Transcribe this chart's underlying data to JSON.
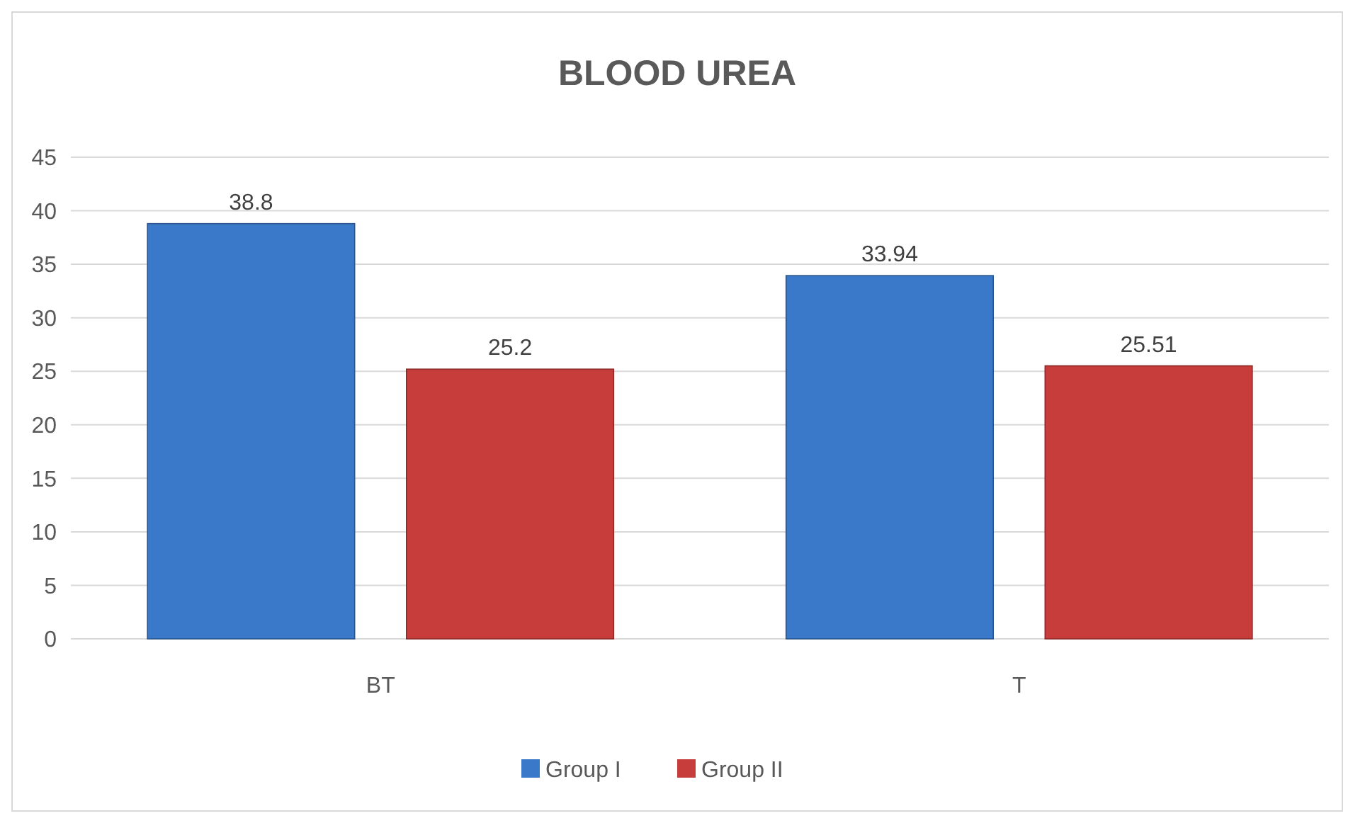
{
  "chart_data": {
    "type": "bar",
    "title": "BLOOD UREA",
    "categories": [
      "BT",
      "T"
    ],
    "series": [
      {
        "name": "Group I",
        "color": "#3a78c9",
        "values": [
          38.8,
          33.94
        ]
      },
      {
        "name": "Group II",
        "color": "#c63d3b",
        "values": [
          25.2,
          25.51
        ]
      }
    ],
    "ylim": [
      0,
      45
    ],
    "yticks": [
      0,
      5,
      10,
      15,
      20,
      25,
      30,
      35,
      40,
      45
    ],
    "grid": "y",
    "legend": "bottom",
    "data_labels": true
  }
}
